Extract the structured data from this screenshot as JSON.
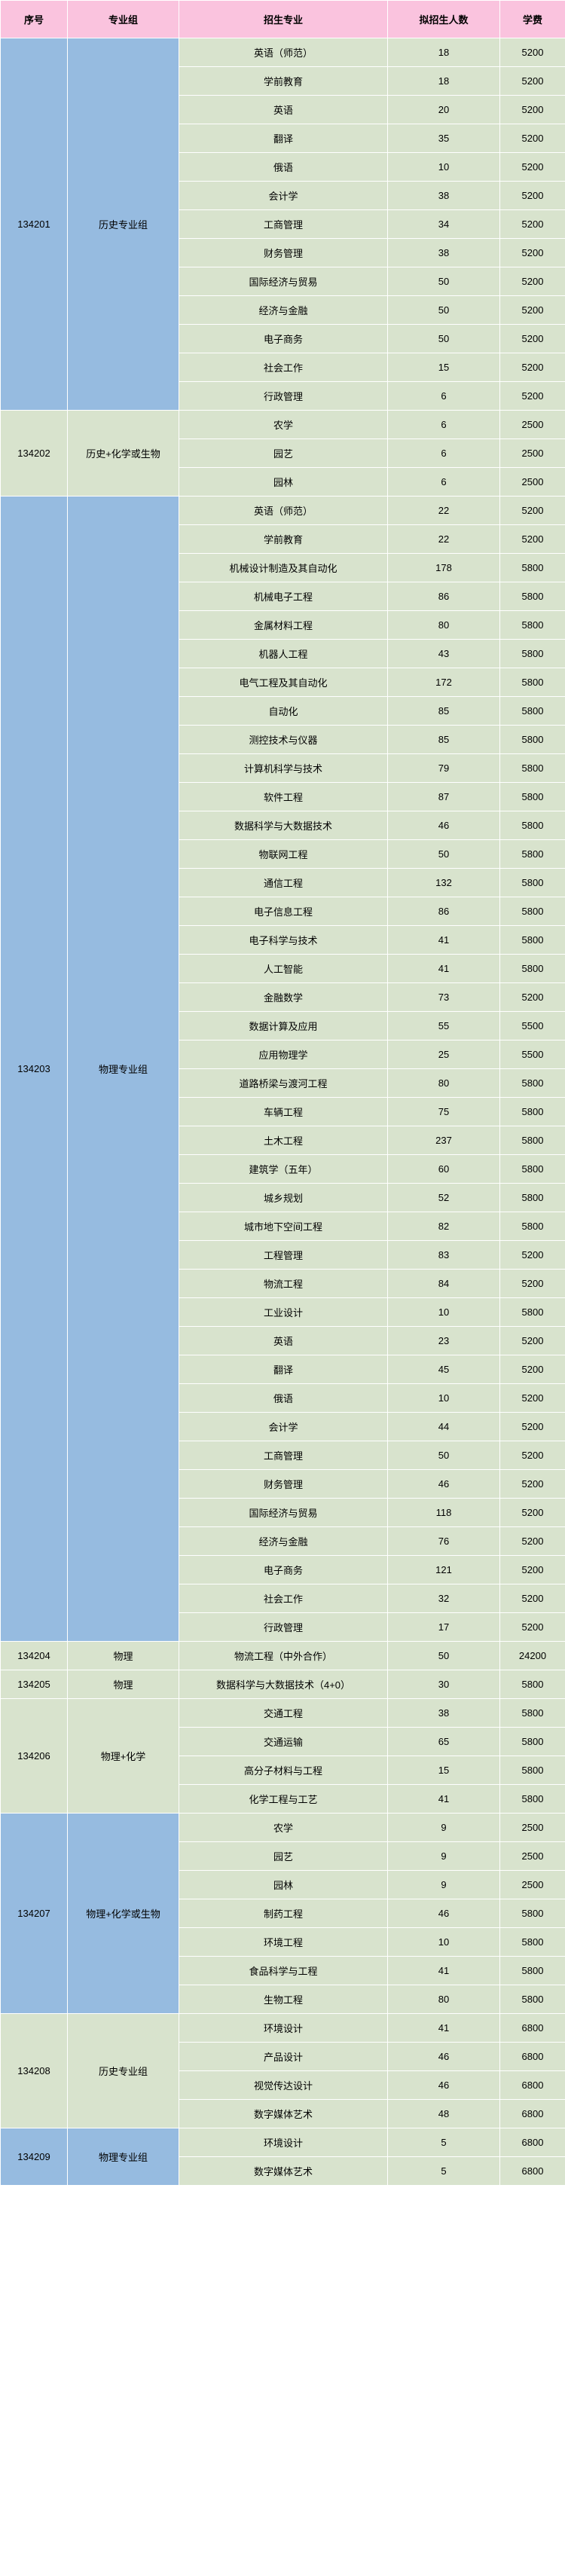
{
  "colors": {
    "header_bg": "#fac3de",
    "group_bg": "#96bbe0",
    "row_bg": "#d8e3cd"
  },
  "headers": [
    "序号",
    "专业组",
    "招生专业",
    "拟招生人数",
    "学费"
  ],
  "groups": [
    {
      "id": "134201",
      "name": "历史专业组",
      "bg": "group",
      "rows": [
        {
          "major": "英语（师范）",
          "count": 18,
          "fee": 5200
        },
        {
          "major": "学前教育",
          "count": 18,
          "fee": 5200
        },
        {
          "major": "英语",
          "count": 20,
          "fee": 5200
        },
        {
          "major": "翻译",
          "count": 35,
          "fee": 5200
        },
        {
          "major": "俄语",
          "count": 10,
          "fee": 5200
        },
        {
          "major": "会计学",
          "count": 38,
          "fee": 5200
        },
        {
          "major": "工商管理",
          "count": 34,
          "fee": 5200
        },
        {
          "major": "财务管理",
          "count": 38,
          "fee": 5200
        },
        {
          "major": "国际经济与贸易",
          "count": 50,
          "fee": 5200
        },
        {
          "major": "经济与金融",
          "count": 50,
          "fee": 5200
        },
        {
          "major": "电子商务",
          "count": 50,
          "fee": 5200
        },
        {
          "major": "社会工作",
          "count": 15,
          "fee": 5200
        },
        {
          "major": "行政管理",
          "count": 6,
          "fee": 5200
        }
      ]
    },
    {
      "id": "134202",
      "name": "历史+化学或生物",
      "bg": "row",
      "rows": [
        {
          "major": "农学",
          "count": 6,
          "fee": 2500
        },
        {
          "major": "园艺",
          "count": 6,
          "fee": 2500
        },
        {
          "major": "园林",
          "count": 6,
          "fee": 2500
        }
      ]
    },
    {
      "id": "134203",
      "name": "物理专业组",
      "bg": "group",
      "rows": [
        {
          "major": "英语（师范）",
          "count": 22,
          "fee": 5200
        },
        {
          "major": "学前教育",
          "count": 22,
          "fee": 5200
        },
        {
          "major": "机械设计制造及其自动化",
          "count": 178,
          "fee": 5800
        },
        {
          "major": "机械电子工程",
          "count": 86,
          "fee": 5800
        },
        {
          "major": "金属材料工程",
          "count": 80,
          "fee": 5800
        },
        {
          "major": "机器人工程",
          "count": 43,
          "fee": 5800
        },
        {
          "major": "电气工程及其自动化",
          "count": 172,
          "fee": 5800
        },
        {
          "major": "自动化",
          "count": 85,
          "fee": 5800
        },
        {
          "major": "测控技术与仪器",
          "count": 85,
          "fee": 5800
        },
        {
          "major": "计算机科学与技术",
          "count": 79,
          "fee": 5800
        },
        {
          "major": "软件工程",
          "count": 87,
          "fee": 5800
        },
        {
          "major": "数据科学与大数据技术",
          "count": 46,
          "fee": 5800
        },
        {
          "major": "物联网工程",
          "count": 50,
          "fee": 5800
        },
        {
          "major": "通信工程",
          "count": 132,
          "fee": 5800
        },
        {
          "major": "电子信息工程",
          "count": 86,
          "fee": 5800
        },
        {
          "major": "电子科学与技术",
          "count": 41,
          "fee": 5800
        },
        {
          "major": "人工智能",
          "count": 41,
          "fee": 5800
        },
        {
          "major": "金融数学",
          "count": 73,
          "fee": 5200
        },
        {
          "major": "数据计算及应用",
          "count": 55,
          "fee": 5500
        },
        {
          "major": "应用物理学",
          "count": 25,
          "fee": 5500
        },
        {
          "major": "道路桥梁与渡河工程",
          "count": 80,
          "fee": 5800
        },
        {
          "major": "车辆工程",
          "count": 75,
          "fee": 5800
        },
        {
          "major": "土木工程",
          "count": 237,
          "fee": 5800
        },
        {
          "major": "建筑学（五年）",
          "count": 60,
          "fee": 5800
        },
        {
          "major": "城乡规划",
          "count": 52,
          "fee": 5800
        },
        {
          "major": "城市地下空间工程",
          "count": 82,
          "fee": 5800
        },
        {
          "major": "工程管理",
          "count": 83,
          "fee": 5200
        },
        {
          "major": "物流工程",
          "count": 84,
          "fee": 5200
        },
        {
          "major": "工业设计",
          "count": 10,
          "fee": 5800
        },
        {
          "major": "英语",
          "count": 23,
          "fee": 5200
        },
        {
          "major": "翻译",
          "count": 45,
          "fee": 5200
        },
        {
          "major": "俄语",
          "count": 10,
          "fee": 5200
        },
        {
          "major": "会计学",
          "count": 44,
          "fee": 5200
        },
        {
          "major": "工商管理",
          "count": 50,
          "fee": 5200
        },
        {
          "major": "财务管理",
          "count": 46,
          "fee": 5200
        },
        {
          "major": "国际经济与贸易",
          "count": 118,
          "fee": 5200
        },
        {
          "major": "经济与金融",
          "count": 76,
          "fee": 5200
        },
        {
          "major": "电子商务",
          "count": 121,
          "fee": 5200
        },
        {
          "major": "社会工作",
          "count": 32,
          "fee": 5200
        },
        {
          "major": "行政管理",
          "count": 17,
          "fee": 5200
        }
      ]
    },
    {
      "id": "134204",
      "name": "物理",
      "bg": "row",
      "rows": [
        {
          "major": "物流工程（中外合作）",
          "count": 50,
          "fee": 24200
        }
      ]
    },
    {
      "id": "134205",
      "name": "物理",
      "bg": "row",
      "rows": [
        {
          "major": "数据科学与大数据技术（4+0）",
          "count": 30,
          "fee": 5800
        }
      ]
    },
    {
      "id": "134206",
      "name": "物理+化学",
      "bg": "row",
      "rows": [
        {
          "major": "交通工程",
          "count": 38,
          "fee": 5800
        },
        {
          "major": "交通运输",
          "count": 65,
          "fee": 5800
        },
        {
          "major": "高分子材料与工程",
          "count": 15,
          "fee": 5800
        },
        {
          "major": "化学工程与工艺",
          "count": 41,
          "fee": 5800
        }
      ]
    },
    {
      "id": "134207",
      "name": "物理+化学或生物",
      "bg": "group",
      "rows": [
        {
          "major": "农学",
          "count": 9,
          "fee": 2500
        },
        {
          "major": "园艺",
          "count": 9,
          "fee": 2500
        },
        {
          "major": "园林",
          "count": 9,
          "fee": 2500
        },
        {
          "major": "制药工程",
          "count": 46,
          "fee": 5800
        },
        {
          "major": "环境工程",
          "count": 10,
          "fee": 5800
        },
        {
          "major": "食品科学与工程",
          "count": 41,
          "fee": 5800
        },
        {
          "major": "生物工程",
          "count": 80,
          "fee": 5800
        }
      ]
    },
    {
      "id": "134208",
      "name": "历史专业组",
      "bg": "row",
      "rows": [
        {
          "major": "环境设计",
          "count": 41,
          "fee": 6800
        },
        {
          "major": "产品设计",
          "count": 46,
          "fee": 6800
        },
        {
          "major": "视觉传达设计",
          "count": 46,
          "fee": 6800
        },
        {
          "major": "数字媒体艺术",
          "count": 48,
          "fee": 6800
        }
      ]
    },
    {
      "id": "134209",
      "name": "物理专业组",
      "bg": "group",
      "rows": [
        {
          "major": "环境设计",
          "count": 5,
          "fee": 6800
        },
        {
          "major": "数字媒体艺术",
          "count": 5,
          "fee": 6800
        }
      ]
    }
  ]
}
